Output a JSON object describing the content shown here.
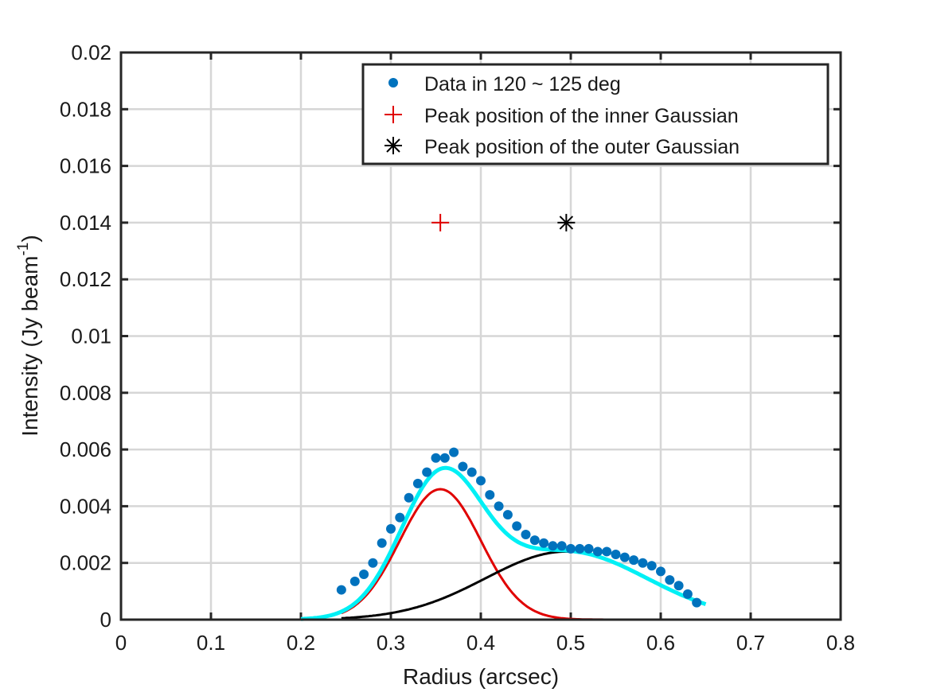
{
  "chart_data": {
    "type": "line",
    "xlabel": "Radius (arcsec)",
    "ylabel": "Intensity (Jy beam",
    "ylabel_sup": "-1",
    "ylabel_close": ")",
    "xlim": [
      0,
      0.8
    ],
    "ylim": [
      0,
      0.02
    ],
    "grid": true,
    "legend_position": "top-right",
    "x_ticks": [
      0,
      0.1,
      0.2,
      0.3,
      0.4,
      0.5,
      0.6,
      0.7,
      0.8
    ],
    "x_tick_labels": [
      "0",
      "0.1",
      "0.2",
      "0.3",
      "0.4",
      "0.5",
      "0.6",
      "0.7",
      "0.8"
    ],
    "y_ticks": [
      0,
      0.002,
      0.004,
      0.006,
      0.008,
      0.01,
      0.012,
      0.014,
      0.016,
      0.018,
      0.02
    ],
    "y_tick_labels": [
      "0",
      "0.002",
      "0.004",
      "0.006",
      "0.008",
      "0.01",
      "0.012",
      "0.014",
      "0.016",
      "0.018",
      "0.02"
    ],
    "series": [
      {
        "name": "Data in 120 ~ 125 deg",
        "kind": "scatter",
        "color": "#0072BD",
        "x": [
          0.245,
          0.26,
          0.27,
          0.28,
          0.29,
          0.3,
          0.31,
          0.32,
          0.33,
          0.34,
          0.35,
          0.36,
          0.37,
          0.38,
          0.39,
          0.4,
          0.41,
          0.42,
          0.43,
          0.44,
          0.45,
          0.46,
          0.47,
          0.48,
          0.49,
          0.5,
          0.51,
          0.52,
          0.53,
          0.54,
          0.55,
          0.56,
          0.57,
          0.58,
          0.59,
          0.6,
          0.61,
          0.62,
          0.63,
          0.64
        ],
        "y": [
          0.00105,
          0.00135,
          0.0016,
          0.002,
          0.0027,
          0.0032,
          0.0036,
          0.0043,
          0.0048,
          0.0052,
          0.0057,
          0.0057,
          0.0059,
          0.0054,
          0.0052,
          0.0049,
          0.0044,
          0.004,
          0.0037,
          0.0033,
          0.003,
          0.0028,
          0.0027,
          0.0026,
          0.0026,
          0.0025,
          0.0025,
          0.0025,
          0.0024,
          0.0024,
          0.0023,
          0.0022,
          0.0021,
          0.002,
          0.0019,
          0.0017,
          0.0014,
          0.0012,
          0.0009,
          0.0006
        ]
      },
      {
        "name": "Inner Gaussian",
        "kind": "curve",
        "color": "#E00000",
        "amplitude": 0.0046,
        "center": 0.355,
        "sigma": 0.045,
        "x_range": [
          0.245,
          0.645
        ]
      },
      {
        "name": "Outer Gaussian",
        "kind": "curve",
        "color": "#000000",
        "amplitude": 0.0024,
        "center": 0.495,
        "sigma": 0.09,
        "x_range": [
          0.245,
          0.645
        ]
      },
      {
        "name": "Total fit",
        "kind": "curve_sum",
        "color": "#00F0F5",
        "x_range": [
          0.2,
          0.65
        ]
      },
      {
        "name": "Peak position of the inner Gaussian",
        "kind": "marker",
        "marker": "plus",
        "color": "#E00000",
        "x": 0.355,
        "y": 0.014
      },
      {
        "name": "Peak position of the outer Gaussian",
        "kind": "marker",
        "marker": "asterisk",
        "color": "#000000",
        "x": 0.495,
        "y": 0.014
      }
    ],
    "legend": [
      {
        "label": "Data in 120 ~ 125 deg",
        "marker": "dot",
        "color": "#0072BD"
      },
      {
        "label": "Peak position of the inner Gaussian",
        "marker": "plus",
        "color": "#E00000"
      },
      {
        "label": "Peak position of the outer Gaussian",
        "marker": "asterisk",
        "color": "#000000"
      }
    ]
  }
}
